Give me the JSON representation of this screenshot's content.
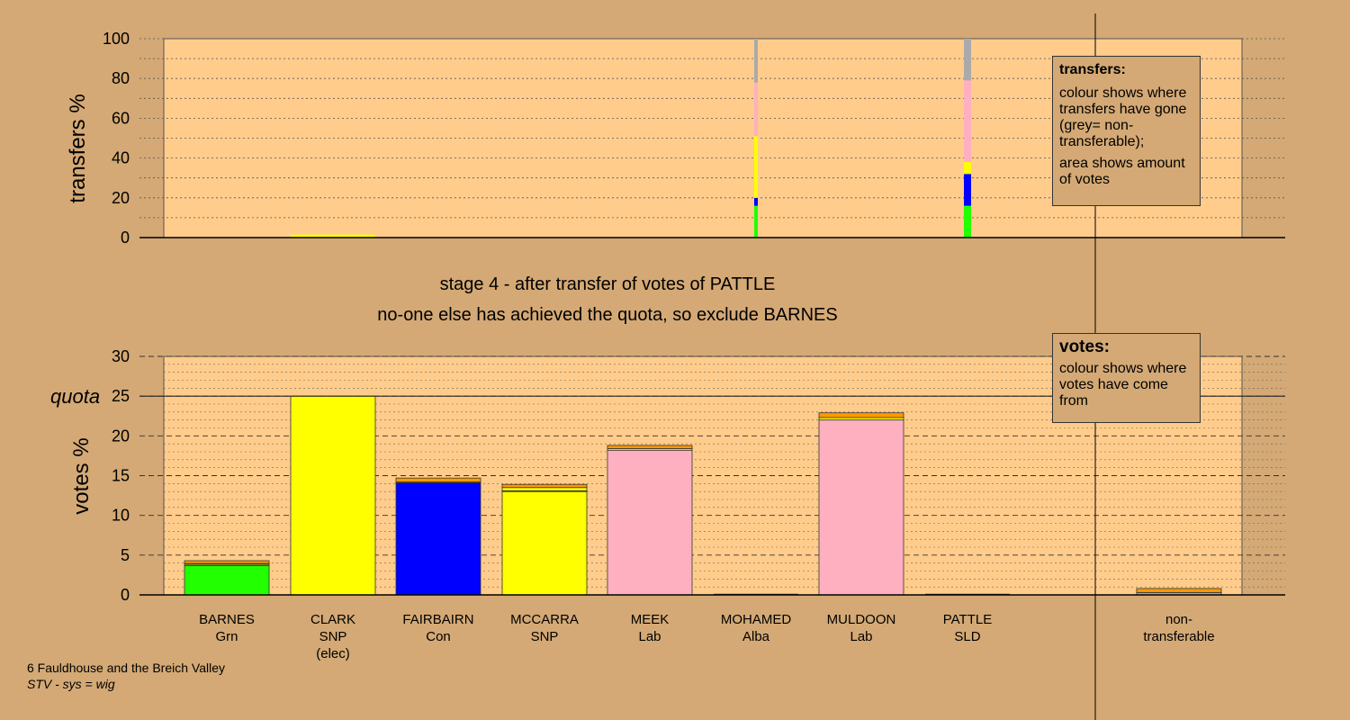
{
  "colors": {
    "background": "#d4a975",
    "plot_bg": "#ffcc8c",
    "Grn": "#22ff00",
    "SNP": "#ffff00",
    "Con": "#0000ff",
    "Lab": "#ffb0c0",
    "Alba": "#ff8888",
    "SLD": "#ff9900",
    "nontransferable": "#aaaaaa"
  },
  "stage_text": {
    "line1": "stage 4 - after transfer of votes of PATTLE",
    "line2": "no-one else has achieved the quota, so exclude BARNES"
  },
  "transfers_legend": {
    "title": "transfers:",
    "body1": "colour shows where transfers have gone (grey= non-transferable);",
    "body2": "area shows amount of votes"
  },
  "votes_legend": {
    "title": "votes:",
    "body": "colour shows where votes have come from"
  },
  "footer": {
    "ward": "6 Fauldhouse and the Breich Valley",
    "system": "STV - sys = wig"
  },
  "chart_data": [
    {
      "type": "bar",
      "stacked": true,
      "ylabel": "transfers %",
      "ylim": [
        0,
        100
      ],
      "yticks": [
        0,
        20,
        40,
        60,
        80,
        100
      ],
      "grid": true,
      "note": "bar width proportional to amount of votes transferred",
      "columns": [
        {
          "candidate": "CLARK",
          "segments": [
            {
              "party": "SNP",
              "value": 1.5
            }
          ],
          "amount": 0.1
        },
        {
          "candidate": "MOHAMED",
          "segments": [
            {
              "party": "Grn",
              "value": 16
            },
            {
              "party": "Con",
              "value": 4
            },
            {
              "party": "SNP",
              "value": 31
            },
            {
              "party": "Lab",
              "value": 27
            },
            {
              "party": "nontransferable",
              "value": 22
            }
          ],
          "amount": 0.1
        },
        {
          "candidate": "PATTLE",
          "segments": [
            {
              "party": "Grn",
              "value": 16
            },
            {
              "party": "Con",
              "value": 16
            },
            {
              "party": "SNP",
              "value": 6
            },
            {
              "party": "Lab",
              "value": 41
            },
            {
              "party": "nontransferable",
              "value": 21
            }
          ],
          "amount": 0.1
        }
      ]
    },
    {
      "type": "bar",
      "stacked": true,
      "ylabel": "votes %",
      "ylim": [
        0,
        30
      ],
      "yticks": [
        0,
        5,
        10,
        15,
        20,
        25,
        30
      ],
      "quota": {
        "label": "quota",
        "value": 25
      },
      "grid": true,
      "categories": [
        "BARNES",
        "CLARK",
        "FAIRBAIRN",
        "MCCARRA",
        "MEEK",
        "MOHAMED",
        "MULDOON",
        "PATTLE",
        "",
        "non-"
      ],
      "category_sub": [
        "Grn",
        "SNP",
        "Con",
        "SNP",
        "Lab",
        "Alba",
        "Lab",
        "SLD",
        "",
        "transferable"
      ],
      "category_sub2": [
        "",
        "(elec)",
        "",
        "",
        "",
        "",
        "",
        "",
        "",
        ""
      ],
      "columns": [
        {
          "candidate": "BARNES",
          "segments": [
            {
              "party": "Grn",
              "value": 3.7
            },
            {
              "party": "SNP",
              "value": 0.15
            },
            {
              "party": "Lab",
              "value": 0.1
            },
            {
              "party": "SLD",
              "value": 0.35
            }
          ]
        },
        {
          "candidate": "CLARK",
          "segments": [
            {
              "party": "SNP",
              "value": 25.0
            }
          ]
        },
        {
          "candidate": "FAIRBAIRN",
          "segments": [
            {
              "party": "Con",
              "value": 14.1
            },
            {
              "party": "Alba",
              "value": 0.1
            },
            {
              "party": "SLD",
              "value": 0.5
            }
          ]
        },
        {
          "candidate": "MCCARRA",
          "segments": [
            {
              "party": "SNP",
              "value": 13.0
            },
            {
              "party": "Lab",
              "value": 0.1
            },
            {
              "party": "SNP",
              "value": 0.4
            },
            {
              "party": "SLD",
              "value": 0.4
            }
          ]
        },
        {
          "candidate": "MEEK",
          "segments": [
            {
              "party": "Lab",
              "value": 18.2
            },
            {
              "party": "SNP",
              "value": 0.2
            },
            {
              "party": "SLD",
              "value": 0.4
            }
          ]
        },
        {
          "candidate": "MOHAMED",
          "segments": [
            {
              "party": "Alba",
              "value": 0
            }
          ]
        },
        {
          "candidate": "MULDOON",
          "segments": [
            {
              "party": "Lab",
              "value": 22.0
            },
            {
              "party": "SNP",
              "value": 0.3
            },
            {
              "party": "SLD",
              "value": 0.6
            }
          ]
        },
        {
          "candidate": "PATTLE",
          "segments": [
            {
              "party": "SLD",
              "value": 0
            }
          ]
        },
        {
          "candidate": "",
          "segments": []
        },
        {
          "candidate": "non-transferable",
          "segments": [
            {
              "party": "nontransferable",
              "value": 0.3
            },
            {
              "party": "SLD",
              "value": 0.5
            }
          ]
        }
      ]
    }
  ]
}
